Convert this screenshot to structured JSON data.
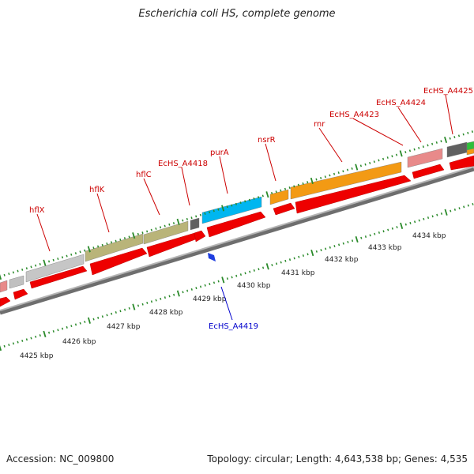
{
  "title": "Escherichia coli HS, complete genome",
  "accession": "Accession: NC_009800",
  "topology": "Topology: circular; Length: 4,643,538 bp; Genes: 4,535",
  "colors": {
    "backbone": "#8c8c8c",
    "cds": "#ee0000",
    "tick": "#2a8a2a",
    "label_top": "#cc0000",
    "label_bottom": "#0000cc"
  },
  "kbp_labels": [
    "4425 kbp",
    "4426 kbp",
    "4427 kbp",
    "4428 kbp",
    "4429 kbp",
    "4430 kbp",
    "4431 kbp",
    "4432 kbp",
    "4433 kbp",
    "4434 kbp"
  ],
  "gene_labels_top": [
    "hflX",
    "hflK",
    "hflC",
    "EcHS_A4418",
    "purA",
    "nsrR",
    "rnr",
    "EcHS_A4423",
    "EcHS_A4424",
    "EcHS_A4425"
  ],
  "gene_labels_bottom": [
    "EcHS_A4419"
  ]
}
